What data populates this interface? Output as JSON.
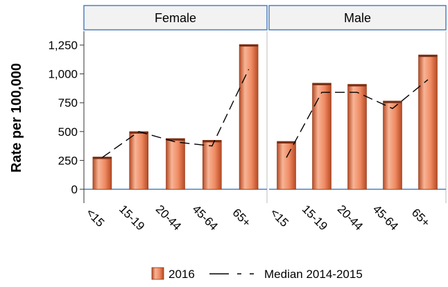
{
  "chart_data": {
    "type": "bar",
    "ylabel": "Rate per 100,000",
    "ylim": [
      0,
      1350
    ],
    "yticks": [
      0,
      250,
      500,
      750,
      1000,
      1250
    ],
    "ytick_labels": [
      "0",
      "250",
      "500",
      "750",
      "1,000",
      "1,250"
    ],
    "categories": [
      "<15",
      "15-19",
      "20-44",
      "45-64",
      "65+"
    ],
    "panels": [
      {
        "title": "Female",
        "series": [
          {
            "name": "2016",
            "type": "bar",
            "values": [
              280,
              500,
              440,
              425,
              1255
            ]
          },
          {
            "name": "Median 2014-2015",
            "type": "line",
            "values": [
              275,
              500,
              410,
              375,
              1040
            ]
          }
        ]
      },
      {
        "title": "Male",
        "series": [
          {
            "name": "2016",
            "type": "bar",
            "values": [
              415,
              920,
              910,
              765,
              1165
            ]
          },
          {
            "name": "Median 2014-2015",
            "type": "line",
            "values": [
              275,
              840,
              840,
              700,
              950
            ]
          }
        ]
      }
    ],
    "legend": {
      "position": "bottom",
      "items": [
        {
          "label": "2016",
          "kind": "bar"
        },
        {
          "label": "Median 2014-2015",
          "kind": "line-dashed"
        }
      ]
    },
    "colors": {
      "bar_light": "#f7b496",
      "bar_mid": "#ef8a62",
      "bar_dark": "#b54a24",
      "panel_border": "#4f81bd",
      "panel_header_fill": "#f2f2f2",
      "axis_line": "#4f81bd",
      "median_line": "#000000"
    }
  }
}
